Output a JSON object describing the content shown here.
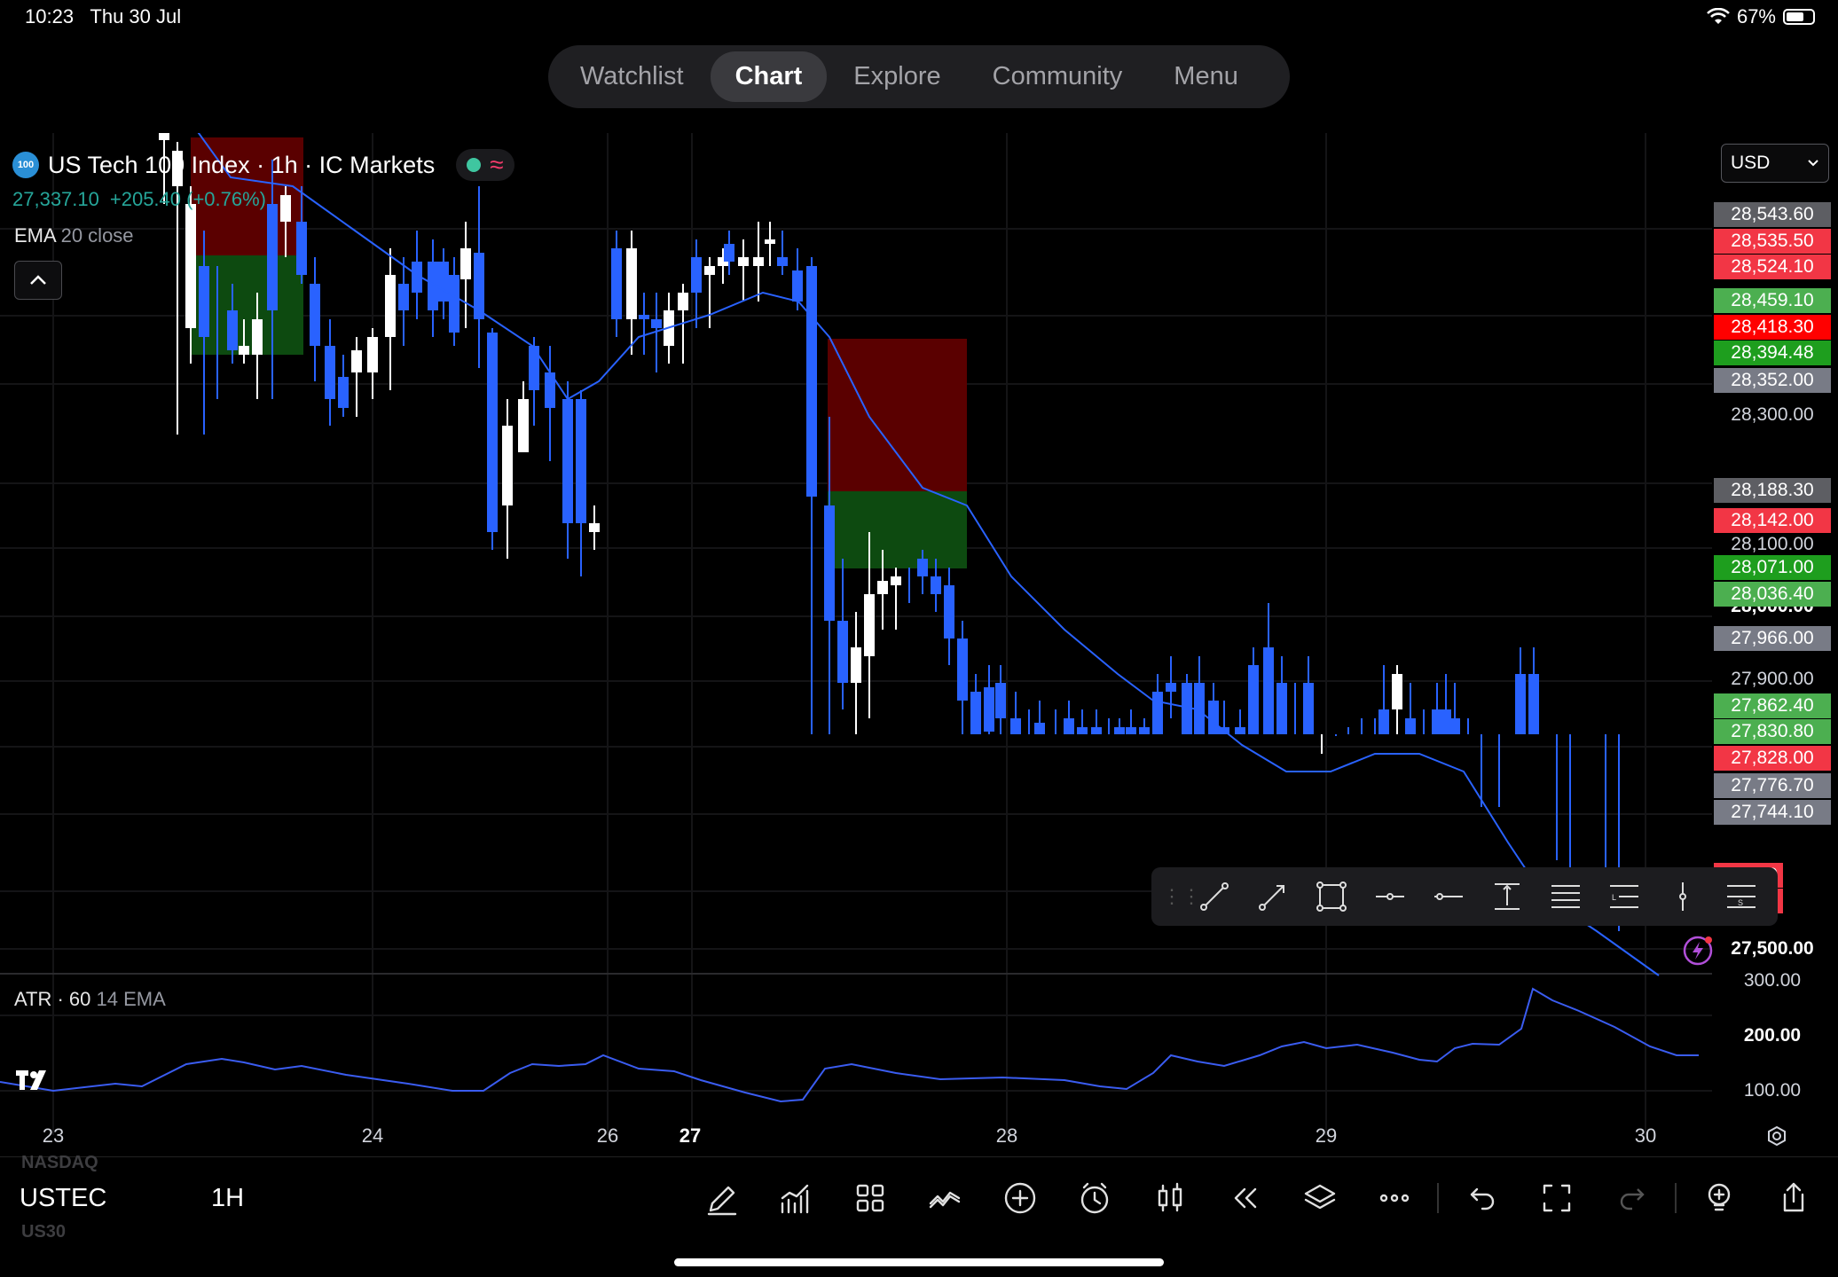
{
  "status_bar": {
    "time": "10:23",
    "date": "Thu 30 Jul",
    "battery": "67%",
    "battery_level": 0.67
  },
  "nav": {
    "tabs": [
      {
        "label": "Watchlist",
        "active": false
      },
      {
        "label": "Chart",
        "active": true
      },
      {
        "label": "Explore",
        "active": false
      },
      {
        "label": "Community",
        "active": false
      },
      {
        "label": "Menu",
        "active": false
      }
    ]
  },
  "legend": {
    "badge": "100",
    "title": "US Tech 100 Index · 1h · IC Markets",
    "price": "27,337.10",
    "change": "+205.40 (+0.76%)",
    "indicator_name": "EMA",
    "indicator_params": "20 close",
    "market_status_color": "#3fc6a0"
  },
  "currency": {
    "label": "USD"
  },
  "price_axis": {
    "labels": [
      {
        "text": "28,300.00",
        "bold": false
      },
      {
        "text": "28,100.00",
        "bold": false
      },
      {
        "text": "28,000.00",
        "bold": true
      },
      {
        "text": "27,900.00",
        "bold": false
      },
      {
        "text": "27,500.00",
        "bold": true
      }
    ],
    "tags": [
      {
        "text": "28,543.60",
        "color": "#5d5e63"
      },
      {
        "text": "28,535.50",
        "color": "#f23645"
      },
      {
        "text": "28,524.10",
        "color": "#f23645"
      },
      {
        "text": "28,459.10",
        "color": "#4caf50"
      },
      {
        "text": "28,418.30",
        "color": "#ff0000"
      },
      {
        "text": "28,394.48",
        "color": "#1e9e1e"
      },
      {
        "text": "28,352.00",
        "color": "#787b86"
      },
      {
        "text": "28,188.30",
        "color": "#5d5e63"
      },
      {
        "text": "28,142.00",
        "color": "#f23645"
      },
      {
        "text": "28,071.00",
        "color": "#1e9e1e"
      },
      {
        "text": "28,036.40",
        "color": "#4caf50"
      },
      {
        "text": "27,966.00",
        "color": "#787b86"
      },
      {
        "text": "27,862.40",
        "color": "#4caf50"
      },
      {
        "text": "27,830.80",
        "color": "#4caf50"
      },
      {
        "text": "27,828.00",
        "color": "#f23645"
      },
      {
        "text": "27,776.70",
        "color": "#787b86"
      },
      {
        "text": "27,744.10",
        "color": "#787b86"
      },
      {
        "text": "8.70",
        "color": "#f23645"
      },
      {
        "text": "4.10",
        "color": "#f23645"
      }
    ]
  },
  "time_axis": [
    {
      "label": "23",
      "bold": false
    },
    {
      "label": "24",
      "bold": false
    },
    {
      "label": "26",
      "bold": false
    },
    {
      "label": "27",
      "bold": true
    },
    {
      "label": "28",
      "bold": false
    },
    {
      "label": "29",
      "bold": false
    },
    {
      "label": "30",
      "bold": false
    }
  ],
  "atr": {
    "name": "ATR · 60",
    "params": "14 EMA",
    "axis": [
      "300.00",
      "200.00",
      "100.00"
    ]
  },
  "drawing_toolbar": {
    "tools": [
      "trend-line-icon",
      "arrow-line-icon",
      "rectangle-icon",
      "horizontal-ray-icon",
      "horizontal-line-icon",
      "price-range-icon",
      "parallel-channel-icon",
      "long-position-icon",
      "vertical-line-icon",
      "short-position-icon"
    ]
  },
  "bottom_bar": {
    "symbol_prev": "NASDAQ",
    "symbol": "USTEC",
    "symbol_next": "US30",
    "interval": "1H",
    "tools": [
      "drawing-pen-icon",
      "indicators-icon",
      "templates-icon",
      "compare-icon",
      "add-icon",
      "alert-icon",
      "chart-type-icon",
      "replay-icon",
      "layers-icon",
      "more-icon",
      "undo-icon",
      "fullscreen-icon",
      "redo-icon",
      "ideas-icon",
      "share-icon"
    ]
  },
  "chart_data": {
    "type": "candlestick",
    "title": "US Tech 100 Index · 1h · IC Markets",
    "x_ticks": [
      "23",
      "24",
      "26",
      "27",
      "28",
      "29",
      "30"
    ],
    "y_ticks": [
      "28,300.00",
      "28,100.00",
      "28,000.00",
      "27,900.00",
      "27,500.00"
    ],
    "series": [
      {
        "name": "EMA",
        "type": "line"
      }
    ],
    "sub_chart": {
      "name": "ATR · 60",
      "y_ticks": [
        "300.00",
        "200.00",
        "100.00"
      ]
    }
  }
}
